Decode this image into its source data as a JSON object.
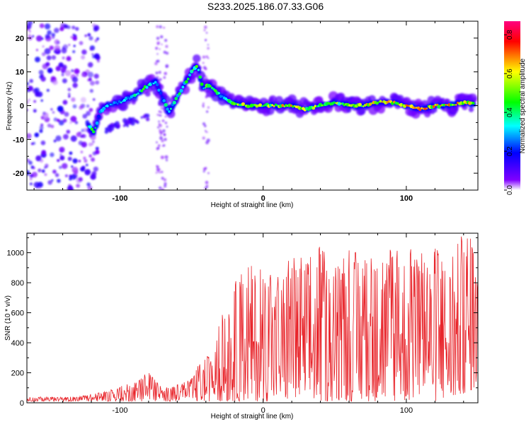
{
  "title": "S233.2025.186.07.33.G06",
  "chart_data": [
    {
      "type": "heatmap",
      "xlabel": "Height of straight line (km)",
      "ylabel": "Frequency (Hz)",
      "xlim": [
        -165,
        150
      ],
      "ylim": [
        -25,
        25
      ],
      "x_ticks": [
        -100,
        0,
        100
      ],
      "y_ticks": [
        -20,
        -10,
        0,
        10,
        20
      ],
      "colorbar": {
        "label": "Normalized spectral amplitude",
        "range": [
          0,
          0.87
        ],
        "ticks": [
          0.0,
          0.2,
          0.4,
          0.6,
          0.8
        ],
        "colors": [
          "#ffffff",
          "#8000ff",
          "#0000ff",
          "#00ffff",
          "#00ff00",
          "#ffff00",
          "#ff0000",
          "#ff0080"
        ]
      },
      "ridge": {
        "x": [
          -122,
          -118,
          -114,
          -110,
          -100,
          -90,
          -80,
          -75,
          -70,
          -66,
          -62,
          -58,
          -54,
          -50,
          -46,
          -42,
          -38,
          -34,
          -30,
          -26,
          -22,
          -18,
          -10,
          0,
          10,
          20,
          30,
          40,
          50,
          60,
          70,
          80,
          90,
          100,
          110,
          120,
          130,
          140,
          148
        ],
        "freq_hz": [
          -6,
          -8,
          -2,
          0,
          1,
          3,
          6,
          7,
          2,
          -2,
          1,
          4,
          7,
          10,
          12,
          5,
          6,
          5,
          3,
          2,
          1,
          0.5,
          0,
          0,
          0,
          0,
          -1,
          0,
          1,
          0,
          0,
          1,
          1,
          0,
          -1,
          0,
          0,
          1,
          0.5
        ],
        "amplitude": [
          0.5,
          0.45,
          0.3,
          0.3,
          0.35,
          0.4,
          0.5,
          0.3,
          0.3,
          0.45,
          0.4,
          0.45,
          0.45,
          0.5,
          0.55,
          0.4,
          0.55,
          0.5,
          0.4,
          0.45,
          0.5,
          0.7,
          0.6,
          0.6,
          0.65,
          0.7,
          0.6,
          0.6,
          0.55,
          0.6,
          0.65,
          0.7,
          0.65,
          0.7,
          0.75,
          0.7,
          0.7,
          0.7,
          0.75
        ]
      }
    },
    {
      "type": "line",
      "xlabel": "Height of straight line (km)",
      "ylabel": "SNR (10 * v/v)",
      "xlim": [
        -165,
        150
      ],
      "ylim": [
        0,
        1130
      ],
      "x_ticks": [
        -100,
        0,
        100
      ],
      "y_ticks": [
        0,
        200,
        400,
        600,
        800,
        1000
      ],
      "color": "#e8242a",
      "envelope": {
        "x": [
          -165,
          -130,
          -110,
          -90,
          -80,
          -70,
          -60,
          -50,
          -45,
          -40,
          -35,
          -30,
          -25,
          -20,
          -10,
          0,
          10,
          20,
          30,
          40,
          50,
          60,
          70,
          80,
          90,
          100,
          110,
          120,
          130,
          140,
          145,
          150
        ],
        "max": [
          40,
          40,
          80,
          140,
          210,
          100,
          120,
          160,
          260,
          330,
          280,
          620,
          570,
          800,
          930,
          900,
          850,
          1010,
          960,
          1050,
          900,
          1040,
          960,
          980,
          1040,
          1060,
          1010,
          1040,
          1000,
          1130,
          1120,
          850
        ],
        "min": [
          10,
          10,
          10,
          10,
          10,
          10,
          10,
          10,
          10,
          10,
          10,
          10,
          10,
          10,
          10,
          10,
          10,
          10,
          10,
          10,
          10,
          10,
          10,
          10,
          10,
          10,
          10,
          10,
          10,
          60,
          80,
          100
        ]
      }
    }
  ]
}
